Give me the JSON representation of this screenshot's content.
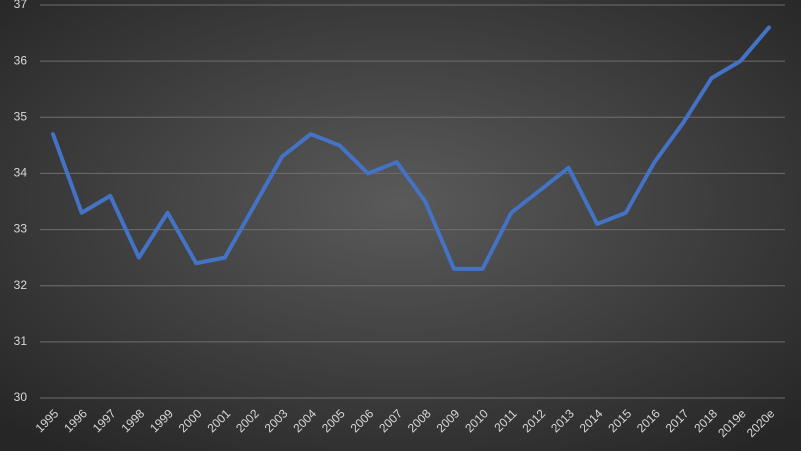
{
  "chart_data": {
    "type": "line",
    "categories": [
      "1995",
      "1996",
      "1997",
      "1998",
      "1999",
      "2000",
      "2001",
      "2002",
      "2003",
      "2004",
      "2005",
      "2006",
      "2007",
      "2008",
      "2009",
      "2010",
      "2011",
      "2012",
      "2013",
      "2014",
      "2015",
      "2016",
      "2017",
      "2018",
      "2019e",
      "2020e"
    ],
    "values": [
      34.7,
      33.3,
      33.6,
      32.5,
      33.3,
      32.4,
      32.5,
      33.4,
      34.3,
      34.7,
      34.5,
      34.0,
      34.2,
      33.5,
      32.3,
      32.3,
      33.3,
      33.7,
      34.1,
      33.1,
      33.3,
      34.2,
      34.9,
      35.7,
      36.0,
      36.6
    ],
    "color": "#4472c4",
    "ylim": [
      30,
      37
    ],
    "yticks": [
      30,
      31,
      32,
      33,
      34,
      35,
      36,
      37
    ],
    "grid": true
  }
}
